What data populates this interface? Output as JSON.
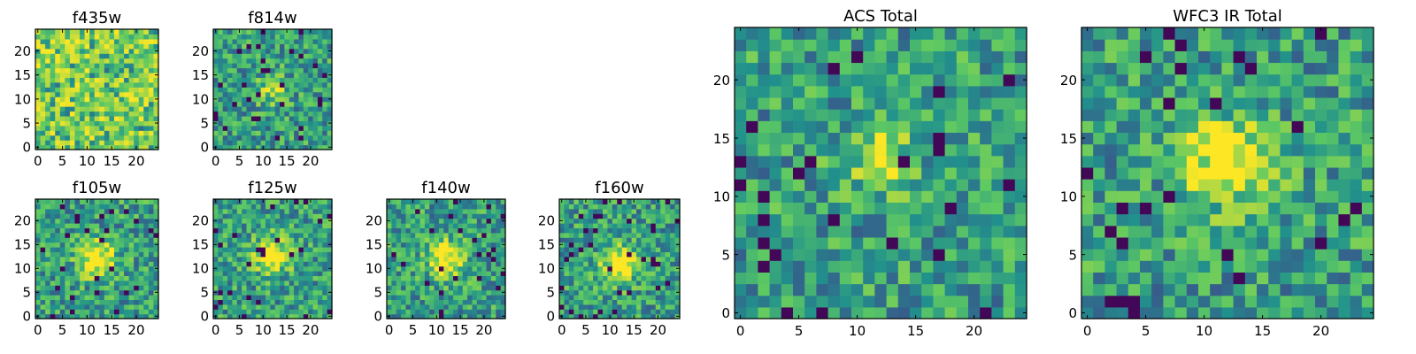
{
  "figure": {
    "background": "#ffffff",
    "colormap": "viridis",
    "colormap_stops": [
      "#440154",
      "#3b528b",
      "#21918c",
      "#5ec962",
      "#fde725"
    ]
  },
  "chart_data": [
    {
      "type": "heatmap",
      "title": "f435w",
      "xlabel": "",
      "ylabel": "",
      "grid_size": 25,
      "xlim": [
        0,
        25
      ],
      "ylim": [
        0,
        25
      ],
      "xticks": [
        "0",
        "5",
        "10",
        "15",
        "20"
      ],
      "yticks": [
        "0",
        "5",
        "10",
        "15",
        "20"
      ],
      "grid": false,
      "pattern": "noise",
      "source_center": null,
      "seed": 11
    },
    {
      "type": "heatmap",
      "title": "f814w",
      "xlabel": "",
      "ylabel": "",
      "grid_size": 25,
      "xlim": [
        0,
        25
      ],
      "ylim": [
        0,
        25
      ],
      "xticks": [
        "0",
        "5",
        "10",
        "15",
        "20"
      ],
      "yticks": [
        "0",
        "5",
        "10",
        "15",
        "20"
      ],
      "grid": false,
      "pattern": "faint-source",
      "source_center": [
        12,
        12
      ],
      "seed": 23
    },
    {
      "type": "heatmap",
      "title": "f105w",
      "xlabel": "",
      "ylabel": "",
      "grid_size": 25,
      "xlim": [
        0,
        25
      ],
      "ylim": [
        0,
        25
      ],
      "xticks": [
        "0",
        "5",
        "10",
        "15",
        "20"
      ],
      "yticks": [
        "0",
        "5",
        "10",
        "15",
        "20"
      ],
      "grid": false,
      "pattern": "source",
      "source_center": [
        12,
        12
      ],
      "seed": 37
    },
    {
      "type": "heatmap",
      "title": "f125w",
      "xlabel": "",
      "ylabel": "",
      "grid_size": 25,
      "xlim": [
        0,
        25
      ],
      "ylim": [
        0,
        25
      ],
      "xticks": [
        "0",
        "5",
        "10",
        "15",
        "20"
      ],
      "yticks": [
        "0",
        "5",
        "10",
        "15",
        "20"
      ],
      "grid": false,
      "pattern": "source",
      "source_center": [
        12,
        13
      ],
      "seed": 41
    },
    {
      "type": "heatmap",
      "title": "f140w",
      "xlabel": "",
      "ylabel": "",
      "grid_size": 25,
      "xlim": [
        0,
        25
      ],
      "ylim": [
        0,
        25
      ],
      "xticks": [
        "0",
        "5",
        "10",
        "15",
        "20"
      ],
      "yticks": [
        "0",
        "5",
        "10",
        "15",
        "20"
      ],
      "grid": false,
      "pattern": "source",
      "source_center": [
        12,
        12
      ],
      "seed": 53
    },
    {
      "type": "heatmap",
      "title": "f160w",
      "xlabel": "",
      "ylabel": "",
      "grid_size": 25,
      "xlim": [
        0,
        25
      ],
      "ylim": [
        0,
        25
      ],
      "xticks": [
        "0",
        "5",
        "10",
        "15",
        "20"
      ],
      "yticks": [
        "0",
        "5",
        "10",
        "15",
        "20"
      ],
      "grid": false,
      "pattern": "source",
      "source_center": [
        12,
        11
      ],
      "seed": 67
    },
    {
      "type": "heatmap",
      "title": "ACS Total",
      "xlabel": "",
      "ylabel": "",
      "grid_size": 25,
      "xlim": [
        0,
        25
      ],
      "ylim": [
        0,
        25
      ],
      "xticks": [
        "0",
        "5",
        "10",
        "15",
        "20"
      ],
      "yticks": [
        "0",
        "5",
        "10",
        "15",
        "20"
      ],
      "grid": false,
      "pattern": "faint-source",
      "source_center": [
        12,
        13
      ],
      "seed": 79
    },
    {
      "type": "heatmap",
      "title": "WFC3 IR Total",
      "xlabel": "",
      "ylabel": "",
      "grid_size": 25,
      "xlim": [
        0,
        25
      ],
      "ylim": [
        0,
        25
      ],
      "xticks": [
        "0",
        "5",
        "10",
        "15",
        "20"
      ],
      "yticks": [
        "0",
        "5",
        "10",
        "15",
        "20"
      ],
      "grid": false,
      "pattern": "source",
      "source_center": [
        12,
        13
      ],
      "seed": 97
    }
  ]
}
